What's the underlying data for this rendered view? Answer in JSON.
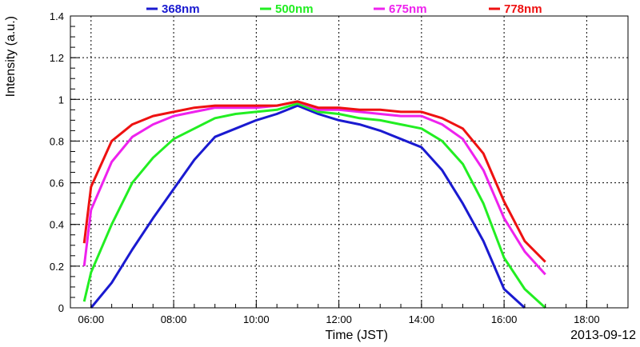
{
  "chart_data": {
    "type": "line",
    "xlabel": "Time (JST)",
    "ylabel": "Intensity (a.u.)",
    "date_label": "2013-09-12",
    "xlim": [
      "05:30",
      "19:00"
    ],
    "ylim": [
      0,
      1.4
    ],
    "x_ticks": [
      "06:00",
      "08:00",
      "10:00",
      "12:00",
      "14:00",
      "16:00",
      "18:00"
    ],
    "y_ticks": [
      "0",
      "0.2",
      "0.4",
      "0.6",
      "0.8",
      "1",
      "1.2",
      "1.4"
    ],
    "grid": true,
    "legend_position": "top",
    "series": [
      {
        "name": "368nm",
        "color": "#1a1ad0",
        "x": [
          "06:00",
          "06:30",
          "07:00",
          "07:30",
          "08:00",
          "08:30",
          "09:00",
          "09:30",
          "10:00",
          "10:30",
          "11:00",
          "11:30",
          "12:00",
          "12:30",
          "13:00",
          "13:30",
          "14:00",
          "14:30",
          "15:00",
          "15:30",
          "16:00",
          "16:30"
        ],
        "values": [
          0.0,
          0.12,
          0.28,
          0.43,
          0.57,
          0.71,
          0.82,
          0.86,
          0.9,
          0.93,
          0.97,
          0.93,
          0.9,
          0.88,
          0.85,
          0.81,
          0.77,
          0.66,
          0.5,
          0.32,
          0.09,
          0.0
        ]
      },
      {
        "name": "500nm",
        "color": "#22ee22",
        "x": [
          "05:50",
          "06:00",
          "06:30",
          "07:00",
          "07:30",
          "08:00",
          "08:30",
          "09:00",
          "09:30",
          "10:00",
          "10:30",
          "11:00",
          "11:30",
          "12:00",
          "12:30",
          "13:00",
          "13:30",
          "14:00",
          "14:30",
          "15:00",
          "15:30",
          "16:00",
          "16:30",
          "17:00"
        ],
        "values": [
          0.03,
          0.17,
          0.4,
          0.6,
          0.72,
          0.81,
          0.86,
          0.91,
          0.93,
          0.94,
          0.95,
          0.98,
          0.94,
          0.93,
          0.91,
          0.9,
          0.88,
          0.86,
          0.8,
          0.69,
          0.5,
          0.24,
          0.09,
          0.0
        ]
      },
      {
        "name": "675nm",
        "color": "#ee22ee",
        "x": [
          "05:50",
          "06:00",
          "06:30",
          "07:00",
          "07:30",
          "08:00",
          "08:30",
          "09:00",
          "09:30",
          "10:00",
          "10:30",
          "11:00",
          "11:30",
          "12:00",
          "12:30",
          "13:00",
          "13:30",
          "14:00",
          "14:30",
          "15:00",
          "15:30",
          "16:00",
          "16:30",
          "17:00"
        ],
        "values": [
          0.2,
          0.47,
          0.7,
          0.82,
          0.88,
          0.92,
          0.94,
          0.96,
          0.96,
          0.96,
          0.97,
          0.99,
          0.95,
          0.95,
          0.94,
          0.93,
          0.92,
          0.92,
          0.88,
          0.81,
          0.66,
          0.43,
          0.27,
          0.16
        ]
      },
      {
        "name": "778nm",
        "color": "#ee1111",
        "x": [
          "05:50",
          "06:00",
          "06:30",
          "07:00",
          "07:30",
          "08:00",
          "08:30",
          "09:00",
          "09:30",
          "10:00",
          "10:30",
          "11:00",
          "11:30",
          "12:00",
          "12:30",
          "13:00",
          "13:30",
          "14:00",
          "14:30",
          "15:00",
          "15:30",
          "16:00",
          "16:30",
          "17:00"
        ],
        "values": [
          0.31,
          0.58,
          0.8,
          0.88,
          0.92,
          0.94,
          0.96,
          0.97,
          0.97,
          0.97,
          0.97,
          0.99,
          0.96,
          0.96,
          0.95,
          0.95,
          0.94,
          0.94,
          0.91,
          0.86,
          0.74,
          0.51,
          0.32,
          0.22
        ]
      }
    ]
  }
}
